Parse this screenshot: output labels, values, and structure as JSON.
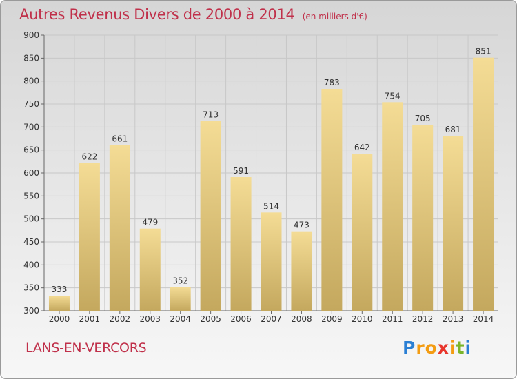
{
  "title": "Autres Revenus Divers de 2000 à 2014",
  "subtitle": "(en milliers d'€)",
  "location": "LANS-EN-VERCORS",
  "logo": {
    "letters": [
      "P",
      "r",
      "o",
      "x",
      "i",
      "t",
      "i"
    ],
    "colors": [
      "#2a7fd4",
      "#f39c12",
      "#f39c12",
      "#e8352b",
      "#f39c12",
      "#7ab52a",
      "#2a7fd4"
    ]
  },
  "colors": {
    "bar_top": "#f4dc95",
    "bar_bottom": "#c4a85e",
    "title": "#c0304a",
    "grid": "#c8c8c8"
  },
  "chart_data": {
    "type": "bar",
    "categories": [
      "2000",
      "2001",
      "2002",
      "2003",
      "2004",
      "2005",
      "2006",
      "2007",
      "2008",
      "2009",
      "2010",
      "2011",
      "2012",
      "2013",
      "2014"
    ],
    "values": [
      333,
      622,
      661,
      479,
      352,
      713,
      591,
      514,
      473,
      783,
      642,
      754,
      705,
      681,
      851
    ],
    "ylim": [
      300,
      900
    ],
    "yticks": [
      "300",
      "350",
      "400",
      "450",
      "500",
      "550",
      "600",
      "650",
      "700",
      "750",
      "800",
      "850",
      "900"
    ],
    "grid": true
  }
}
